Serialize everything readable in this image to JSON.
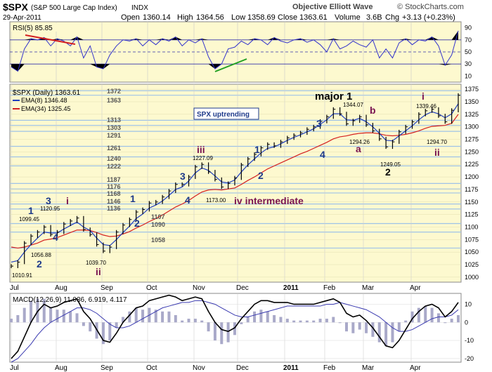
{
  "header": {
    "symbol": "$SPX",
    "name": "(S&P 500 Large Cap Index)",
    "exchange": "INDX",
    "brand": "Objective Elliott Wave",
    "copyright": "© StockCharts.com",
    "date": "29-Apr-2011",
    "open_label": "Open",
    "open": "1360.14",
    "high_label": "High",
    "high": "1364.56",
    "low_label": "Low",
    "low": "1358.69",
    "close_label": "Close",
    "close": "1363.61",
    "volume_label": "Volume",
    "volume": "3.6B",
    "chg_label": "Chg",
    "chg": "+3.13 (+0.23%)"
  },
  "colors": {
    "price_bg": "#fdf9cf",
    "rsi_line": "#3333cc",
    "ema8": "#1f3fbf",
    "ema34": "#d42020",
    "bars": "#000000",
    "wave_blue": "#1e3a8a",
    "wave_maroon": "#7a1450",
    "hline": "#9fc3e7"
  },
  "months": [
    "Jul",
    "Aug",
    "Sep",
    "Oct",
    "Nov",
    "Dec",
    "2011",
    "Feb",
    "Mar",
    "Apr"
  ],
  "chart_data": [
    {
      "type": "line",
      "name": "rsi",
      "title": "RSI(5) 85.85",
      "y_ticks": [
        10,
        30,
        50,
        70,
        90
      ],
      "ylim": [
        0,
        100
      ],
      "levels": [
        30,
        50,
        70
      ],
      "x": [
        0,
        3,
        6,
        9,
        12,
        15,
        18,
        21,
        24,
        27,
        30,
        33,
        36,
        39,
        42,
        45,
        48,
        51,
        54,
        57,
        60,
        63,
        66,
        69,
        72,
        75,
        78,
        81,
        84,
        87,
        90,
        93,
        96,
        99,
        102,
        105,
        108,
        111,
        114,
        117,
        120,
        123,
        126,
        129,
        132,
        135,
        138,
        141,
        144,
        147,
        150,
        153,
        156,
        159,
        162,
        165,
        168,
        171,
        174,
        177,
        180,
        183,
        186,
        189,
        192,
        195,
        198,
        201,
        204
      ],
      "values": [
        25,
        18,
        55,
        72,
        70,
        74,
        60,
        72,
        68,
        60,
        75,
        40,
        60,
        25,
        22,
        45,
        60,
        70,
        68,
        72,
        60,
        70,
        62,
        72,
        68,
        75,
        60,
        70,
        65,
        72,
        42,
        22,
        30,
        55,
        58,
        68,
        62,
        72,
        70,
        62,
        74,
        68,
        65,
        70,
        72,
        66,
        70,
        62,
        50,
        72,
        55,
        60,
        68,
        62,
        58,
        70,
        40,
        55,
        40,
        65,
        72,
        62,
        70,
        68,
        75,
        60,
        28,
        45,
        85
      ]
    },
    {
      "type": "line",
      "name": "price",
      "title": "$SPX (Daily) 1363.61",
      "y_ticks": [
        1000,
        1025,
        1050,
        1075,
        1100,
        1125,
        1150,
        1175,
        1200,
        1225,
        1250,
        1275,
        1300,
        1325,
        1350,
        1375
      ],
      "ylim": [
        990,
        1385
      ],
      "legend": [
        "EMA(8) 1346.48",
        "EMA(34) 1325.45"
      ],
      "horizontal_levels": [
        1372,
        1363,
        1313,
        1303,
        1291,
        1261,
        1240,
        1222,
        1187,
        1176,
        1168,
        1146,
        1136,
        1107,
        1090,
        1058
      ],
      "annotation_text": "SPX uptrending",
      "x": [
        0,
        3,
        6,
        9,
        12,
        15,
        18,
        21,
        24,
        27,
        30,
        33,
        36,
        39,
        42,
        45,
        48,
        51,
        54,
        57,
        60,
        63,
        66,
        69,
        72,
        75,
        78,
        81,
        84,
        87,
        90,
        93,
        96,
        99,
        102,
        105,
        108,
        111,
        114,
        117,
        120,
        123,
        126,
        129,
        132,
        135,
        138,
        141,
        144,
        147,
        150,
        153,
        156,
        159,
        162,
        165,
        168,
        171,
        174,
        177,
        180,
        183,
        186,
        189,
        192,
        195,
        198,
        201,
        204
      ],
      "close": [
        1022,
        1030,
        1068,
        1082,
        1090,
        1100,
        1085,
        1090,
        1106,
        1112,
        1118,
        1095,
        1085,
        1065,
        1052,
        1060,
        1090,
        1104,
        1115,
        1130,
        1135,
        1148,
        1150,
        1160,
        1172,
        1185,
        1185,
        1200,
        1220,
        1225,
        1210,
        1195,
        1180,
        1187,
        1198,
        1224,
        1236,
        1245,
        1258,
        1265,
        1262,
        1270,
        1278,
        1283,
        1288,
        1295,
        1300,
        1311,
        1320,
        1335,
        1326,
        1306,
        1312,
        1320,
        1304,
        1292,
        1276,
        1260,
        1270,
        1290,
        1300,
        1310,
        1325,
        1332,
        1335,
        1322,
        1310,
        1333,
        1363
      ],
      "ema8": [
        1030,
        1033,
        1050,
        1065,
        1078,
        1090,
        1088,
        1088,
        1096,
        1103,
        1110,
        1100,
        1093,
        1078,
        1065,
        1063,
        1075,
        1089,
        1102,
        1117,
        1126,
        1138,
        1144,
        1152,
        1163,
        1175,
        1180,
        1192,
        1208,
        1218,
        1213,
        1202,
        1190,
        1188,
        1194,
        1210,
        1224,
        1236,
        1248,
        1257,
        1260,
        1266,
        1273,
        1279,
        1284,
        1290,
        1296,
        1305,
        1314,
        1326,
        1326,
        1314,
        1313,
        1317,
        1310,
        1300,
        1287,
        1273,
        1272,
        1282,
        1292,
        1302,
        1314,
        1324,
        1330,
        1326,
        1318,
        1326,
        1346
      ],
      "ema34": [
        1060,
        1058,
        1060,
        1064,
        1068,
        1074,
        1076,
        1079,
        1084,
        1089,
        1094,
        1094,
        1093,
        1089,
        1084,
        1081,
        1082,
        1086,
        1091,
        1098,
        1104,
        1111,
        1117,
        1124,
        1132,
        1140,
        1146,
        1153,
        1162,
        1170,
        1174,
        1175,
        1174,
        1176,
        1178,
        1185,
        1193,
        1200,
        1208,
        1216,
        1222,
        1228,
        1234,
        1240,
        1246,
        1251,
        1257,
        1263,
        1269,
        1276,
        1280,
        1282,
        1285,
        1287,
        1288,
        1288,
        1286,
        1283,
        1282,
        1283,
        1285,
        1288,
        1292,
        1297,
        1301,
        1302,
        1303,
        1307,
        1325
      ],
      "labels": [
        "1010.91",
        "1099.45",
        "1120.95",
        "1056.88",
        "1039.70",
        "1107",
        "1090",
        "1058",
        "1227.09",
        "1173.00",
        "1344.07",
        "1294.26",
        "1249.05",
        "1339.46",
        "1294.70"
      ],
      "wave_labels": [
        "1",
        "3",
        "i",
        "2",
        "4",
        "ii",
        "1",
        "2",
        "iii",
        "3",
        "4",
        "iv intermediate",
        "1",
        "2",
        "3",
        "4",
        "major 1",
        "b",
        "a",
        "2",
        "i",
        "ii"
      ]
    },
    {
      "type": "line",
      "name": "macd",
      "title": "MACD(12,26,9) 11.036, 6.919, 4.117",
      "y_ticks": [
        -20,
        -10,
        0,
        10
      ],
      "ylim": [
        -22,
        16
      ],
      "x": [
        0,
        3,
        6,
        9,
        12,
        15,
        18,
        21,
        24,
        27,
        30,
        33,
        36,
        39,
        42,
        45,
        48,
        51,
        54,
        57,
        60,
        63,
        66,
        69,
        72,
        75,
        78,
        81,
        84,
        87,
        90,
        93,
        96,
        99,
        102,
        105,
        108,
        111,
        114,
        117,
        120,
        123,
        126,
        129,
        132,
        135,
        138,
        141,
        144,
        147,
        150,
        153,
        156,
        159,
        162,
        165,
        168,
        171,
        174,
        177,
        180,
        183,
        186,
        189,
        192,
        195,
        198,
        201,
        204
      ],
      "macd": [
        -20,
        -16,
        -8,
        0,
        6,
        10,
        8,
        9,
        11,
        12,
        13,
        6,
        2,
        -4,
        -10,
        -11,
        -6,
        0,
        4,
        8,
        9,
        12,
        13,
        14,
        15,
        14,
        12,
        13,
        14,
        13,
        6,
        0,
        -4,
        -5,
        -3,
        2,
        6,
        10,
        12,
        12,
        11,
        11,
        11,
        10,
        10,
        10,
        10,
        11,
        12,
        13,
        11,
        5,
        3,
        4,
        1,
        -3,
        -8,
        -13,
        -14,
        -10,
        -4,
        2,
        6,
        9,
        10,
        8,
        3,
        6,
        11
      ],
      "signal": [
        -22,
        -20,
        -16,
        -12,
        -7,
        -3,
        0,
        2,
        4,
        6,
        8,
        8,
        7,
        5,
        2,
        -1,
        -3,
        -3,
        -2,
        0,
        2,
        4,
        6,
        8,
        9,
        10,
        11,
        11,
        12,
        12,
        11,
        10,
        8,
        6,
        4,
        3,
        3,
        4,
        5,
        6,
        7,
        8,
        9,
        9,
        9,
        9,
        9,
        9,
        10,
        10,
        11,
        10,
        9,
        8,
        7,
        5,
        3,
        0,
        -3,
        -5,
        -5,
        -4,
        -2,
        0,
        2,
        3,
        3,
        4,
        7
      ],
      "histogram_note": "MACD minus signal",
      "y_label_values": [
        10,
        0,
        -10,
        -20
      ]
    }
  ]
}
